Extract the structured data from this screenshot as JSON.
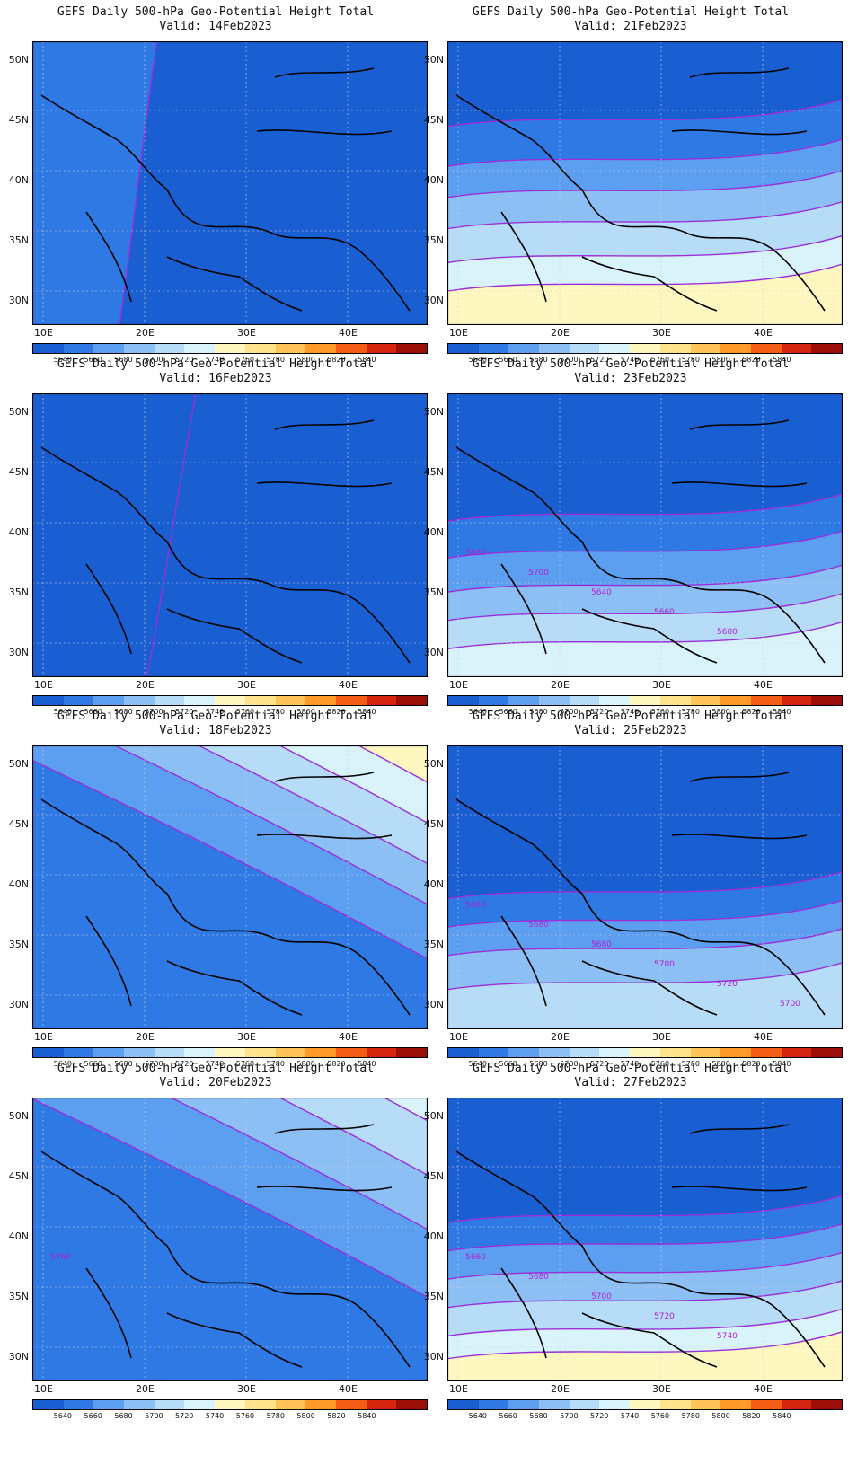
{
  "title_line1": "GEFS Daily 500-hPa Geo-Potential Height Total",
  "lat_labels": [
    "50N",
    "45N",
    "40N",
    "35N",
    "30N"
  ],
  "lon_labels": [
    "10E",
    "20E",
    "30E",
    "40E"
  ],
  "colorbar": {
    "colors": [
      "#1a5fd1",
      "#2f79e4",
      "#5c9ff0",
      "#8cc0f5",
      "#b6dcf8",
      "#d9f3fb",
      "#fff7c0",
      "#ffe28a",
      "#ffc35a",
      "#ff9a2b",
      "#f25c15",
      "#d4240d",
      "#9c0f08"
    ],
    "labels": [
      "5640",
      "5660",
      "5680",
      "5700",
      "5720",
      "5740",
      "5760",
      "5780",
      "5800",
      "5820",
      "5840"
    ]
  },
  "panels": [
    {
      "id": "p1",
      "valid": "Valid: 14Feb2023",
      "contour_labels": []
    },
    {
      "id": "p2",
      "valid": "Valid: 21Feb2023",
      "contour_labels": []
    },
    {
      "id": "p3",
      "valid": "Valid: 16Feb2023",
      "contour_labels": []
    },
    {
      "id": "p4",
      "valid": "Valid: 23Feb2023",
      "contour_labels": [
        "5680",
        "5700",
        "5640",
        "5660",
        "5680"
      ]
    },
    {
      "id": "p5",
      "valid": "Valid: 18Feb2023",
      "contour_labels": []
    },
    {
      "id": "p6",
      "valid": "Valid: 25Feb2023",
      "contour_labels": [
        "5660",
        "5680",
        "5680",
        "5700",
        "5720",
        "5700"
      ]
    },
    {
      "id": "p7",
      "valid": "Valid: 20Feb2023",
      "contour_labels": [
        "5760"
      ]
    },
    {
      "id": "p8",
      "valid": "Valid: 27Feb2023",
      "contour_labels": [
        "5660",
        "5680",
        "5700",
        "5720",
        "5740"
      ]
    }
  ]
}
